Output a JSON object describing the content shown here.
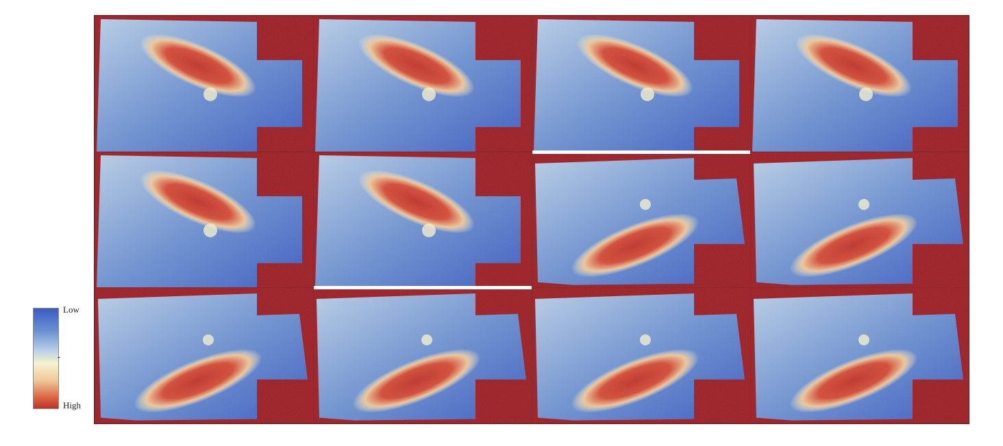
{
  "legend": {
    "low_label": "Low",
    "high_label": "High",
    "colors": [
      "#3b5bc2",
      "#b9cfe8",
      "#f6f3cf",
      "#d9603f",
      "#c0322b"
    ]
  },
  "colors": {
    "background_mask": "#9b1c22",
    "low": "#3b5bc2",
    "mid_low": "#b9cfe8",
    "mid": "#f6f3cf",
    "high": "#c0322b"
  },
  "panels": [
    {
      "orientation": "upper"
    },
    {
      "orientation": "upper"
    },
    {
      "orientation": "upper"
    },
    {
      "orientation": "upper"
    },
    {
      "orientation": "upper"
    },
    {
      "orientation": "upper"
    },
    {
      "orientation": "lower"
    },
    {
      "orientation": "lower"
    },
    {
      "orientation": "lower"
    },
    {
      "orientation": "lower"
    },
    {
      "orientation": "lower"
    },
    {
      "orientation": "lower"
    }
  ]
}
